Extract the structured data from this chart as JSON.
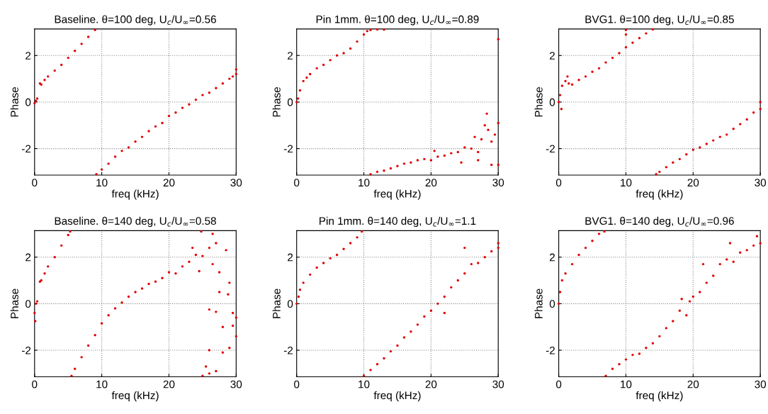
{
  "chart_data": [
    {
      "type": "scatter",
      "title": "Baseline. θ=100 deg, U$_{c}$/U$_{∞}$=0.56",
      "xlabel": "freq (kHz)",
      "ylabel": "Phase",
      "xlim": [
        0,
        30
      ],
      "ylim": [
        -3.14,
        3.14
      ],
      "xticks": [
        0,
        10,
        20,
        30
      ],
      "yticks": [
        -2,
        0,
        2
      ],
      "grid": true,
      "marker": "circle",
      "legend": false,
      "series": [
        {
          "color": "#e00000",
          "x": [
            0,
            0.2,
            0.4,
            0.8,
            1,
            1.5,
            2,
            3,
            4,
            5,
            6,
            7,
            8,
            9,
            9.2,
            10,
            11,
            12,
            13,
            14,
            15,
            16,
            17,
            18,
            19,
            20,
            21,
            22,
            23,
            24,
            25,
            26,
            27,
            28,
            29,
            29.5,
            30,
            30
          ],
          "values": [
            -0.05,
            0.05,
            0.15,
            0.8,
            0.75,
            0.95,
            1.1,
            1.35,
            1.6,
            1.9,
            2.2,
            2.5,
            2.8,
            3.1,
            -3.1,
            -2.9,
            -2.65,
            -2.35,
            -2.1,
            -1.95,
            -1.7,
            -1.5,
            -1.25,
            -1.05,
            -0.9,
            -0.6,
            -0.45,
            -0.25,
            -0.1,
            0.1,
            0.3,
            0.4,
            0.6,
            0.8,
            1.0,
            1.1,
            1.4,
            1.2
          ]
        }
      ]
    },
    {
      "type": "scatter",
      "title": "Pin 1mm. θ=100 deg, U$_{c}$/U$_{∞}$=0.89",
      "xlabel": "freq (kHz)",
      "ylabel": "Phase",
      "xlim": [
        0,
        30
      ],
      "ylim": [
        -3.14,
        3.14
      ],
      "xticks": [
        0,
        10,
        20,
        30
      ],
      "yticks": [
        -2,
        0,
        2
      ],
      "grid": true,
      "marker": "circle",
      "legend": false,
      "series": [
        {
          "color": "#e00000",
          "x": [
            0,
            0.2,
            0.5,
            1,
            1.5,
            2,
            3,
            4,
            5,
            6,
            7,
            8,
            9,
            10,
            10.5,
            11,
            12,
            13,
            30,
            11,
            12,
            13,
            14,
            15,
            16,
            17,
            18,
            19,
            20,
            20.5,
            21,
            22,
            23,
            24,
            24.5,
            25,
            26,
            26.5,
            27,
            27.5,
            28,
            28.5,
            29,
            29,
            29.5,
            30,
            30,
            28.3,
            27
          ],
          "values": [
            0,
            0.15,
            0.5,
            0.9,
            1.05,
            1.2,
            1.45,
            1.6,
            1.8,
            2.0,
            2.1,
            2.3,
            2.6,
            2.9,
            3.05,
            3.1,
            3.12,
            3.11,
            2.7,
            -3.1,
            -3.0,
            -2.95,
            -2.85,
            -2.75,
            -2.65,
            -2.6,
            -2.5,
            -2.45,
            -2.5,
            -2.1,
            -2.35,
            -2.3,
            -2.2,
            -2.15,
            -2.6,
            -1.95,
            -2.0,
            -1.5,
            -2.15,
            -1.6,
            -1.0,
            -1.2,
            -1.7,
            -2.7,
            -1.4,
            -0.9,
            -2.7,
            -0.5,
            -2.5
          ]
        }
      ]
    },
    {
      "type": "scatter",
      "title": "BVG1. θ=100 deg, U$_{c}$/U$_{∞}$=0.85",
      "xlabel": "freq (kHz)",
      "ylabel": "Phase",
      "xlim": [
        0,
        30
      ],
      "ylim": [
        -3.14,
        3.14
      ],
      "xticks": [
        0,
        10,
        20,
        30
      ],
      "yticks": [
        -2,
        0,
        2
      ],
      "grid": true,
      "marker": "circle",
      "legend": false,
      "series": [
        {
          "color": "#e00000",
          "x": [
            0,
            0.2,
            0.4,
            0.5,
            1,
            1.3,
            1.5,
            2,
            3,
            4,
            5,
            6,
            7,
            8,
            9,
            10,
            10,
            10,
            11,
            12,
            13,
            14,
            14.5,
            15,
            16,
            17,
            18,
            19,
            20,
            21,
            22,
            23,
            24,
            25,
            26,
            27,
            28,
            29,
            30,
            30
          ],
          "values": [
            0,
            0.3,
            -0.3,
            0.7,
            0.9,
            1.1,
            0.8,
            0.75,
            0.95,
            1.1,
            1.3,
            1.45,
            1.7,
            1.9,
            2.1,
            2.35,
            2.9,
            3.1,
            2.55,
            2.75,
            2.95,
            3.12,
            -3.1,
            -3.0,
            -2.8,
            -2.6,
            -2.45,
            -2.25,
            -2.05,
            -1.95,
            -1.8,
            -1.65,
            -1.5,
            -1.4,
            -1.15,
            -0.95,
            -0.75,
            -0.45,
            -0.3,
            0.0
          ]
        }
      ]
    },
    {
      "type": "scatter",
      "title": "Baseline. θ=140 deg, U$_{c}$/U$_{∞}$=0.58",
      "xlabel": "freq (kHz)",
      "ylabel": "Phase",
      "xlim": [
        0,
        30
      ],
      "ylim": [
        -3.14,
        3.14
      ],
      "xticks": [
        0,
        10,
        20,
        30
      ],
      "yticks": [
        -2,
        0,
        2
      ],
      "grid": true,
      "marker": "circle",
      "legend": false,
      "series": [
        {
          "color": "#e00000",
          "x": [
            0,
            0.1,
            0.2,
            0.4,
            0.8,
            1,
            1.5,
            2,
            3,
            4,
            5,
            5.3,
            5.5,
            6,
            7,
            8,
            9,
            10,
            11,
            12,
            13,
            14,
            15,
            16,
            17,
            18,
            19,
            20,
            21,
            22,
            23,
            23.5,
            24,
            24.5,
            25,
            24.8,
            26,
            26.5,
            27,
            27.5,
            26.5,
            26,
            27,
            26,
            25.5,
            26,
            27,
            27.5,
            28,
            28,
            28.5,
            29,
            29,
            29.5,
            30,
            30,
            29.5,
            25,
            28.8
          ],
          "values": [
            -0.4,
            -0.75,
            0.0,
            0.1,
            0.95,
            1.0,
            1.3,
            1.6,
            2.0,
            2.5,
            2.95,
            3.1,
            -3.1,
            -2.8,
            -2.3,
            -1.8,
            -1.35,
            -0.85,
            -0.5,
            -0.2,
            0.05,
            0.3,
            0.5,
            0.65,
            0.85,
            0.95,
            1.1,
            1.35,
            1.3,
            1.6,
            1.8,
            2.4,
            2.1,
            1.4,
            2.05,
            3.1,
            2.4,
            3.0,
            2.6,
            1.35,
            1.7,
            -0.25,
            -0.35,
            -2.0,
            -2.7,
            -3.0,
            -2.9,
            0.5,
            -1.0,
            -2.1,
            2.3,
            0.9,
            -1.9,
            -0.4,
            -0.6,
            -1.4,
            -0.95,
            -3.1,
            0.4
          ]
        }
      ]
    },
    {
      "type": "scatter",
      "title": "Pin 1mm. θ=140 deg, U$_{c}$/U$_{∞}$=1.1",
      "xlabel": "freq (kHz)",
      "ylabel": "Phase",
      "xlim": [
        0,
        30
      ],
      "ylim": [
        -3.14,
        3.14
      ],
      "xticks": [
        0,
        10,
        20,
        30
      ],
      "yticks": [
        -2,
        0,
        2
      ],
      "grid": true,
      "marker": "circle",
      "legend": false,
      "series": [
        {
          "color": "#e00000",
          "x": [
            0,
            0.3,
            0.5,
            1,
            2,
            3,
            4,
            5,
            6,
            7,
            8,
            9,
            9.7,
            10,
            11,
            12,
            13,
            14,
            15,
            16,
            17,
            18,
            19,
            20,
            21,
            22,
            22,
            23,
            24,
            25,
            25,
            26,
            27,
            28,
            29,
            30,
            30
          ],
          "values": [
            0,
            0.3,
            0.6,
            0.9,
            1.25,
            1.55,
            1.75,
            1.95,
            2.1,
            2.35,
            2.6,
            2.85,
            3.1,
            -3.1,
            -2.85,
            -2.6,
            -2.35,
            -2.05,
            -1.8,
            -1.45,
            -1.2,
            -0.9,
            -0.55,
            -0.3,
            0.0,
            -0.4,
            0.3,
            0.7,
            1.0,
            1.3,
            2.4,
            1.7,
            1.75,
            2.0,
            2.25,
            2.6,
            2.4
          ]
        }
      ]
    },
    {
      "type": "scatter",
      "title": "BVG1. θ=140 deg, U$_{c}$/U$_{∞}$=0.96",
      "xlabel": "freq (kHz)",
      "ylabel": "Phase",
      "xlim": [
        0,
        30
      ],
      "ylim": [
        -3.14,
        3.14
      ],
      "xticks": [
        0,
        10,
        20,
        30
      ],
      "yticks": [
        -2,
        0,
        2
      ],
      "grid": true,
      "marker": "circle",
      "legend": false,
      "series": [
        {
          "color": "#e00000",
          "x": [
            0,
            0.2,
            0.5,
            1,
            2,
            3,
            4,
            5,
            6,
            6.8,
            7,
            8,
            9,
            10,
            11,
            12,
            13,
            14,
            15,
            16,
            17,
            18,
            18.3,
            19,
            19.5,
            20,
            21,
            21.5,
            22,
            23,
            24,
            25,
            25.5,
            26,
            27,
            28,
            29,
            29.5,
            30
          ],
          "values": [
            0,
            0.5,
            1.0,
            1.3,
            1.7,
            2.1,
            2.4,
            2.7,
            3.0,
            3.1,
            -3.1,
            -2.8,
            -2.6,
            -2.4,
            -2.2,
            -2.15,
            -1.9,
            -1.7,
            -1.4,
            -1.05,
            -0.75,
            -0.3,
            0.2,
            -0.5,
            0.1,
            0.3,
            0.5,
            1.7,
            0.9,
            1.2,
            1.7,
            1.9,
            2.6,
            1.8,
            2.2,
            2.3,
            2.5,
            2.9,
            2.6
          ]
        }
      ]
    }
  ]
}
